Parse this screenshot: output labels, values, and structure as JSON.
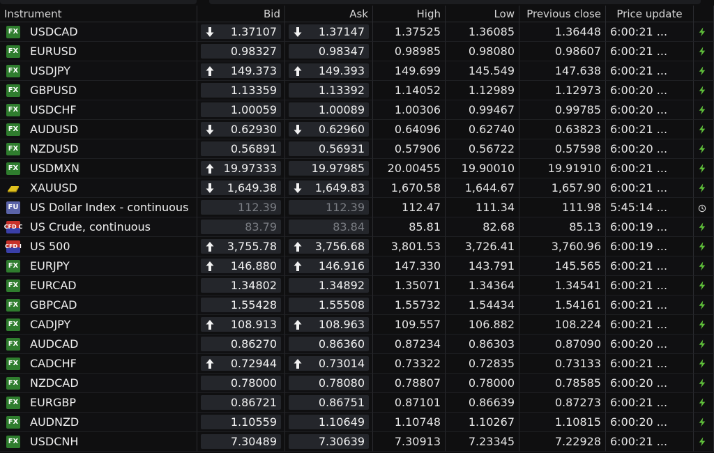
{
  "columns": {
    "instrument": "Instrument",
    "bid": "Bid",
    "ask": "Ask",
    "high": "High",
    "low": "Low",
    "prev_close": "Previous close",
    "price_update": "Price update"
  },
  "colors": {
    "fx_badge": "#2f7d2e",
    "fu_badge": "#5a63a8",
    "bolt": "#5fbf3a",
    "price_box": "#24262b",
    "background": "#0f0f10"
  },
  "rows": [
    {
      "instrument": "USDCAD",
      "badge": "FX",
      "badge_type": "fx",
      "bid": "1.37107",
      "ask": "1.37147",
      "bid_dir": "down",
      "ask_dir": "down",
      "high": "1.37525",
      "low": "1.36085",
      "prev_close": "1.36448",
      "time": "6:00:21 ...",
      "update_icon": "bolt-icon",
      "stale": false
    },
    {
      "instrument": "EURUSD",
      "badge": "FX",
      "badge_type": "fx",
      "bid": "0.98327",
      "ask": "0.98347",
      "bid_dir": "",
      "ask_dir": "",
      "high": "0.98985",
      "low": "0.98080",
      "prev_close": "0.98607",
      "time": "6:00:21 ...",
      "update_icon": "bolt-icon",
      "stale": false
    },
    {
      "instrument": "USDJPY",
      "badge": "FX",
      "badge_type": "fx",
      "bid": "149.373",
      "ask": "149.393",
      "bid_dir": "up",
      "ask_dir": "up",
      "high": "149.699",
      "low": "145.549",
      "prev_close": "147.638",
      "time": "6:00:21 ...",
      "update_icon": "bolt-icon",
      "stale": false
    },
    {
      "instrument": "GBPUSD",
      "badge": "FX",
      "badge_type": "fx",
      "bid": "1.13359",
      "ask": "1.13392",
      "bid_dir": "",
      "ask_dir": "",
      "high": "1.14052",
      "low": "1.12989",
      "prev_close": "1.12973",
      "time": "6:00:20 ...",
      "update_icon": "bolt-icon",
      "stale": false
    },
    {
      "instrument": "USDCHF",
      "badge": "FX",
      "badge_type": "fx",
      "bid": "1.00059",
      "ask": "1.00089",
      "bid_dir": "",
      "ask_dir": "",
      "high": "1.00306",
      "low": "0.99467",
      "prev_close": "0.99785",
      "time": "6:00:20 ...",
      "update_icon": "bolt-icon",
      "stale": false
    },
    {
      "instrument": "AUDUSD",
      "badge": "FX",
      "badge_type": "fx",
      "bid": "0.62930",
      "ask": "0.62960",
      "bid_dir": "down",
      "ask_dir": "down",
      "high": "0.64096",
      "low": "0.62740",
      "prev_close": "0.63823",
      "time": "6:00:21 ...",
      "update_icon": "bolt-icon",
      "stale": false
    },
    {
      "instrument": "NZDUSD",
      "badge": "FX",
      "badge_type": "fx",
      "bid": "0.56891",
      "ask": "0.56931",
      "bid_dir": "",
      "ask_dir": "",
      "high": "0.57906",
      "low": "0.56722",
      "prev_close": "0.57598",
      "time": "6:00:20 ...",
      "update_icon": "bolt-icon",
      "stale": false
    },
    {
      "instrument": "USDMXN",
      "badge": "FX",
      "badge_type": "fx",
      "bid": "19.97333",
      "ask": "19.97985",
      "bid_dir": "up",
      "ask_dir": "",
      "high": "20.00455",
      "low": "19.90010",
      "prev_close": "19.91910",
      "time": "6:00:21 ...",
      "update_icon": "bolt-icon",
      "stale": false
    },
    {
      "instrument": "XAUUSD",
      "badge": "",
      "badge_type": "gold",
      "bid": "1,649.38",
      "ask": "1,649.83",
      "bid_dir": "down",
      "ask_dir": "down",
      "high": "1,670.58",
      "low": "1,644.67",
      "prev_close": "1,657.90",
      "time": "6:00:21 ...",
      "update_icon": "bolt-icon",
      "stale": false
    },
    {
      "instrument": "US Dollar Index - continuous",
      "badge": "FU",
      "badge_type": "fu",
      "bid": "112.39",
      "ask": "112.39",
      "bid_dir": "",
      "ask_dir": "",
      "high": "112.47",
      "low": "111.34",
      "prev_close": "111.98",
      "time": "5:45:14 ...",
      "update_icon": "clock-icon",
      "stale": true
    },
    {
      "instrument": "US Crude, continuous",
      "badge": "CFD C",
      "badge_type": "cfd",
      "bid": "83.79",
      "ask": "83.84",
      "bid_dir": "",
      "ask_dir": "",
      "high": "85.81",
      "low": "82.68",
      "prev_close": "85.13",
      "time": "6:00:19 ...",
      "update_icon": "bolt-icon",
      "stale": true
    },
    {
      "instrument": "US 500",
      "badge": "CFD I",
      "badge_type": "cfd",
      "bid": "3,755.78",
      "ask": "3,756.68",
      "bid_dir": "up",
      "ask_dir": "up",
      "high": "3,801.53",
      "low": "3,726.41",
      "prev_close": "3,760.96",
      "time": "6:00:19 ...",
      "update_icon": "bolt-icon",
      "stale": false
    },
    {
      "instrument": "EURJPY",
      "badge": "FX",
      "badge_type": "fx",
      "bid": "146.880",
      "ask": "146.916",
      "bid_dir": "up",
      "ask_dir": "up",
      "high": "147.330",
      "low": "143.791",
      "prev_close": "145.565",
      "time": "6:00:21 ...",
      "update_icon": "bolt-icon",
      "stale": false
    },
    {
      "instrument": "EURCAD",
      "badge": "FX",
      "badge_type": "fx",
      "bid": "1.34802",
      "ask": "1.34892",
      "bid_dir": "",
      "ask_dir": "",
      "high": "1.35071",
      "low": "1.34364",
      "prev_close": "1.34541",
      "time": "6:00:21 ...",
      "update_icon": "bolt-icon",
      "stale": false
    },
    {
      "instrument": "GBPCAD",
      "badge": "FX",
      "badge_type": "fx",
      "bid": "1.55428",
      "ask": "1.55508",
      "bid_dir": "",
      "ask_dir": "",
      "high": "1.55732",
      "low": "1.54434",
      "prev_close": "1.54161",
      "time": "6:00:21 ...",
      "update_icon": "bolt-icon",
      "stale": false
    },
    {
      "instrument": "CADJPY",
      "badge": "FX",
      "badge_type": "fx",
      "bid": "108.913",
      "ask": "108.963",
      "bid_dir": "up",
      "ask_dir": "up",
      "high": "109.557",
      "low": "106.882",
      "prev_close": "108.224",
      "time": "6:00:21 ...",
      "update_icon": "bolt-icon",
      "stale": false
    },
    {
      "instrument": "AUDCAD",
      "badge": "FX",
      "badge_type": "fx",
      "bid": "0.86270",
      "ask": "0.86360",
      "bid_dir": "",
      "ask_dir": "",
      "high": "0.87234",
      "low": "0.86303",
      "prev_close": "0.87090",
      "time": "6:00:20 ...",
      "update_icon": "bolt-icon",
      "stale": false
    },
    {
      "instrument": "CADCHF",
      "badge": "FX",
      "badge_type": "fx",
      "bid": "0.72944",
      "ask": "0.73014",
      "bid_dir": "up",
      "ask_dir": "up",
      "high": "0.73322",
      "low": "0.72835",
      "prev_close": "0.73133",
      "time": "6:00:21 ...",
      "update_icon": "bolt-icon",
      "stale": false
    },
    {
      "instrument": "NZDCAD",
      "badge": "FX",
      "badge_type": "fx",
      "bid": "0.78000",
      "ask": "0.78080",
      "bid_dir": "",
      "ask_dir": "",
      "high": "0.78807",
      "low": "0.78000",
      "prev_close": "0.78585",
      "time": "6:00:20 ...",
      "update_icon": "bolt-icon",
      "stale": false
    },
    {
      "instrument": "EURGBP",
      "badge": "FX",
      "badge_type": "fx",
      "bid": "0.86721",
      "ask": "0.86751",
      "bid_dir": "",
      "ask_dir": "",
      "high": "0.87101",
      "low": "0.86639",
      "prev_close": "0.87273",
      "time": "6:00:21 ...",
      "update_icon": "bolt-icon",
      "stale": false
    },
    {
      "instrument": "AUDNZD",
      "badge": "FX",
      "badge_type": "fx",
      "bid": "1.10559",
      "ask": "1.10649",
      "bid_dir": "",
      "ask_dir": "",
      "high": "1.10748",
      "low": "1.10267",
      "prev_close": "1.10815",
      "time": "6:00:20 ...",
      "update_icon": "bolt-icon",
      "stale": false
    },
    {
      "instrument": "USDCNH",
      "badge": "FX",
      "badge_type": "fx",
      "bid": "7.30489",
      "ask": "7.30639",
      "bid_dir": "",
      "ask_dir": "",
      "high": "7.30913",
      "low": "7.23345",
      "prev_close": "7.22928",
      "time": "6:00:21 ...",
      "update_icon": "bolt-icon",
      "stale": false
    }
  ]
}
